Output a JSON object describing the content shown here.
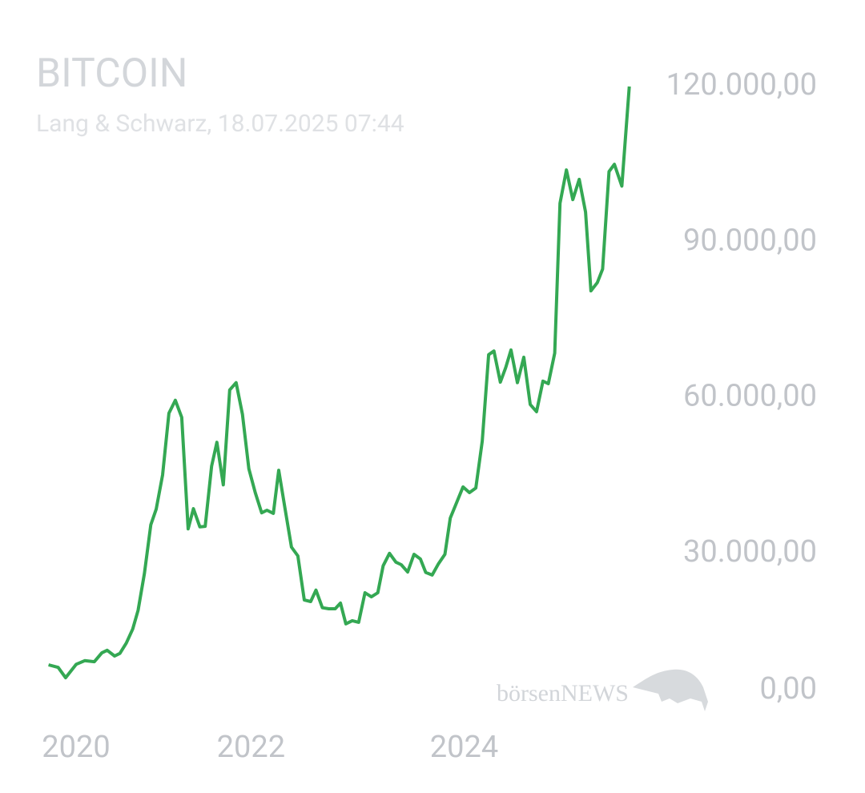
{
  "chart_data": {
    "type": "line",
    "title": "BITCOIN",
    "subtitle": "Lang & Schwarz, 18.07.2025 07:44",
    "watermark": "börsenNEWS",
    "x": [
      2020.1,
      2020.19,
      2020.26,
      2020.36,
      2020.44,
      2020.53,
      2020.6,
      2020.65,
      2020.72,
      2020.77,
      2020.83,
      2020.89,
      2020.94,
      2021.0,
      2021.06,
      2021.11,
      2021.17,
      2021.23,
      2021.29,
      2021.35,
      2021.41,
      2021.46,
      2021.52,
      2021.57,
      2021.63,
      2021.68,
      2021.74,
      2021.8,
      2021.86,
      2021.92,
      2021.98,
      2022.04,
      2022.1,
      2022.15,
      2022.21,
      2022.26,
      2022.32,
      2022.38,
      2022.44,
      2022.5,
      2022.56,
      2022.61,
      2022.67,
      2022.73,
      2022.79,
      2022.84,
      2022.89,
      2022.95,
      2023.01,
      2023.07,
      2023.13,
      2023.19,
      2023.24,
      2023.3,
      2023.36,
      2023.41,
      2023.47,
      2023.53,
      2023.59,
      2023.64,
      2023.7,
      2023.76,
      2023.82,
      2023.87,
      2023.93,
      2023.99,
      2024.05,
      2024.11,
      2024.17,
      2024.23,
      2024.28,
      2024.34,
      2024.39,
      2024.44,
      2024.5,
      2024.56,
      2024.62,
      2024.68,
      2024.74,
      2024.79,
      2024.85,
      2024.9,
      2024.96,
      2025.02,
      2025.08,
      2025.14,
      2025.19,
      2025.25,
      2025.3,
      2025.36,
      2025.41,
      2025.48,
      2025.55
    ],
    "series": [
      {
        "name": "Bitcoin",
        "color": "#34a853",
        "values": [
          8500,
          8000,
          6000,
          8600,
          9300,
          9100,
          10800,
          11300,
          10200,
          10700,
          12700,
          15400,
          19000,
          26100,
          35500,
          38500,
          45100,
          57000,
          59500,
          56200,
          34700,
          38600,
          35100,
          35200,
          46800,
          51400,
          43200,
          61500,
          62900,
          56800,
          46300,
          41700,
          37800,
          38300,
          37700,
          46000,
          38500,
          31200,
          29500,
          21000,
          20700,
          22900,
          19500,
          19300,
          19300,
          20400,
          16400,
          17000,
          16700,
          22400,
          21600,
          22400,
          27600,
          30000,
          28300,
          27800,
          26400,
          29800,
          28900,
          26300,
          25800,
          28000,
          29800,
          36800,
          39800,
          42800,
          41700,
          42600,
          51600,
          68300,
          69000,
          63000,
          65800,
          69200,
          62900,
          67800,
          58700,
          57300,
          63200,
          62700,
          68600,
          97500,
          103900,
          98200,
          102100,
          95800,
          80600,
          82200,
          84800,
          103600,
          105000,
          100800,
          120000
        ]
      }
    ],
    "xlim": [
      2019.9,
      2025.65
    ],
    "xticks": [
      2020,
      2022,
      2024
    ],
    "ylim": [
      0,
      120000
    ],
    "yticks": [
      {
        "value": 0,
        "label": "0,00"
      },
      {
        "value": 30000,
        "label": "30.000,00"
      },
      {
        "value": 60000,
        "label": "60.000,00"
      },
      {
        "value": 90000,
        "label": "90.000,00"
      },
      {
        "value": 120000,
        "label": "120.000,00"
      }
    ],
    "grid": false
  }
}
